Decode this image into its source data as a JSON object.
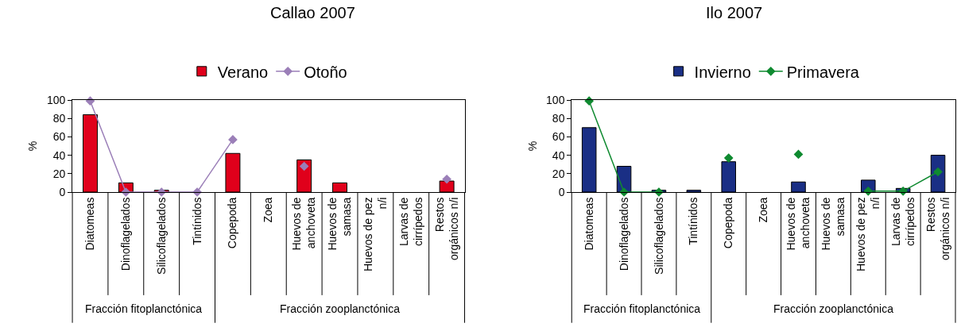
{
  "chart_data": [
    {
      "type": "bar",
      "title": "Callao 2007",
      "ylabel": "%",
      "categories": [
        "Diatomeas",
        "Dinoflagelados",
        "Silicoflagelados",
        "Tintínidos",
        "Copepoda",
        "Zoea",
        "Huevos de\nanchoveta",
        "Huevos de\nsamasa",
        "Huevos de pez\nn/i",
        "Larvas de\ncirrípedos",
        "Restos\norgánicos n/i"
      ],
      "series": [
        {
          "name": "Verano",
          "color": "#e0001b",
          "values": [
            84,
            10,
            2,
            null,
            42,
            null,
            35,
            10,
            null,
            null,
            12
          ]
        },
        {
          "name": "Otoño",
          "type": "line",
          "color": "#9b7fb8",
          "marker": "diamond",
          "values": [
            99,
            0,
            0,
            0,
            57,
            null,
            28,
            null,
            null,
            null,
            14
          ]
        }
      ],
      "ylim": [
        0,
        100
      ],
      "yticks": [
        0,
        20,
        40,
        60,
        80,
        100
      ],
      "legend": "top",
      "annotations": [
        "Fracción fitoplanctónica",
        "Fracción zooplanctónica"
      ]
    },
    {
      "type": "bar",
      "title": "Ilo 2007",
      "ylabel": "%",
      "categories": [
        "Diatomeas",
        "Dinoflagelados",
        "Silicoflagelados",
        "Tintínidos",
        "Copepoda",
        "Zoea",
        "Huevos de\nanchoveta",
        "Huevos de\nsamasa",
        "Huevos de pez\nn/i",
        "Larvas de\ncirrípedos",
        "Restos\norgánicos n/i"
      ],
      "series": [
        {
          "name": "Invierno",
          "color": "#1a2f85",
          "values": [
            70,
            28,
            2,
            2,
            33,
            null,
            11,
            null,
            13,
            4,
            40
          ]
        },
        {
          "name": "Primavera",
          "type": "line",
          "color": "#0f8a30",
          "marker": "diamond",
          "values": [
            99,
            0,
            0,
            null,
            37,
            null,
            41,
            null,
            1,
            1,
            22
          ]
        }
      ],
      "ylim": [
        0,
        100
      ],
      "yticks": [
        0,
        20,
        40,
        60,
        80,
        100
      ],
      "legend": "top",
      "annotations": [
        "Fracción fitoplanctónica",
        "Fracción zooplanctónica"
      ]
    }
  ]
}
